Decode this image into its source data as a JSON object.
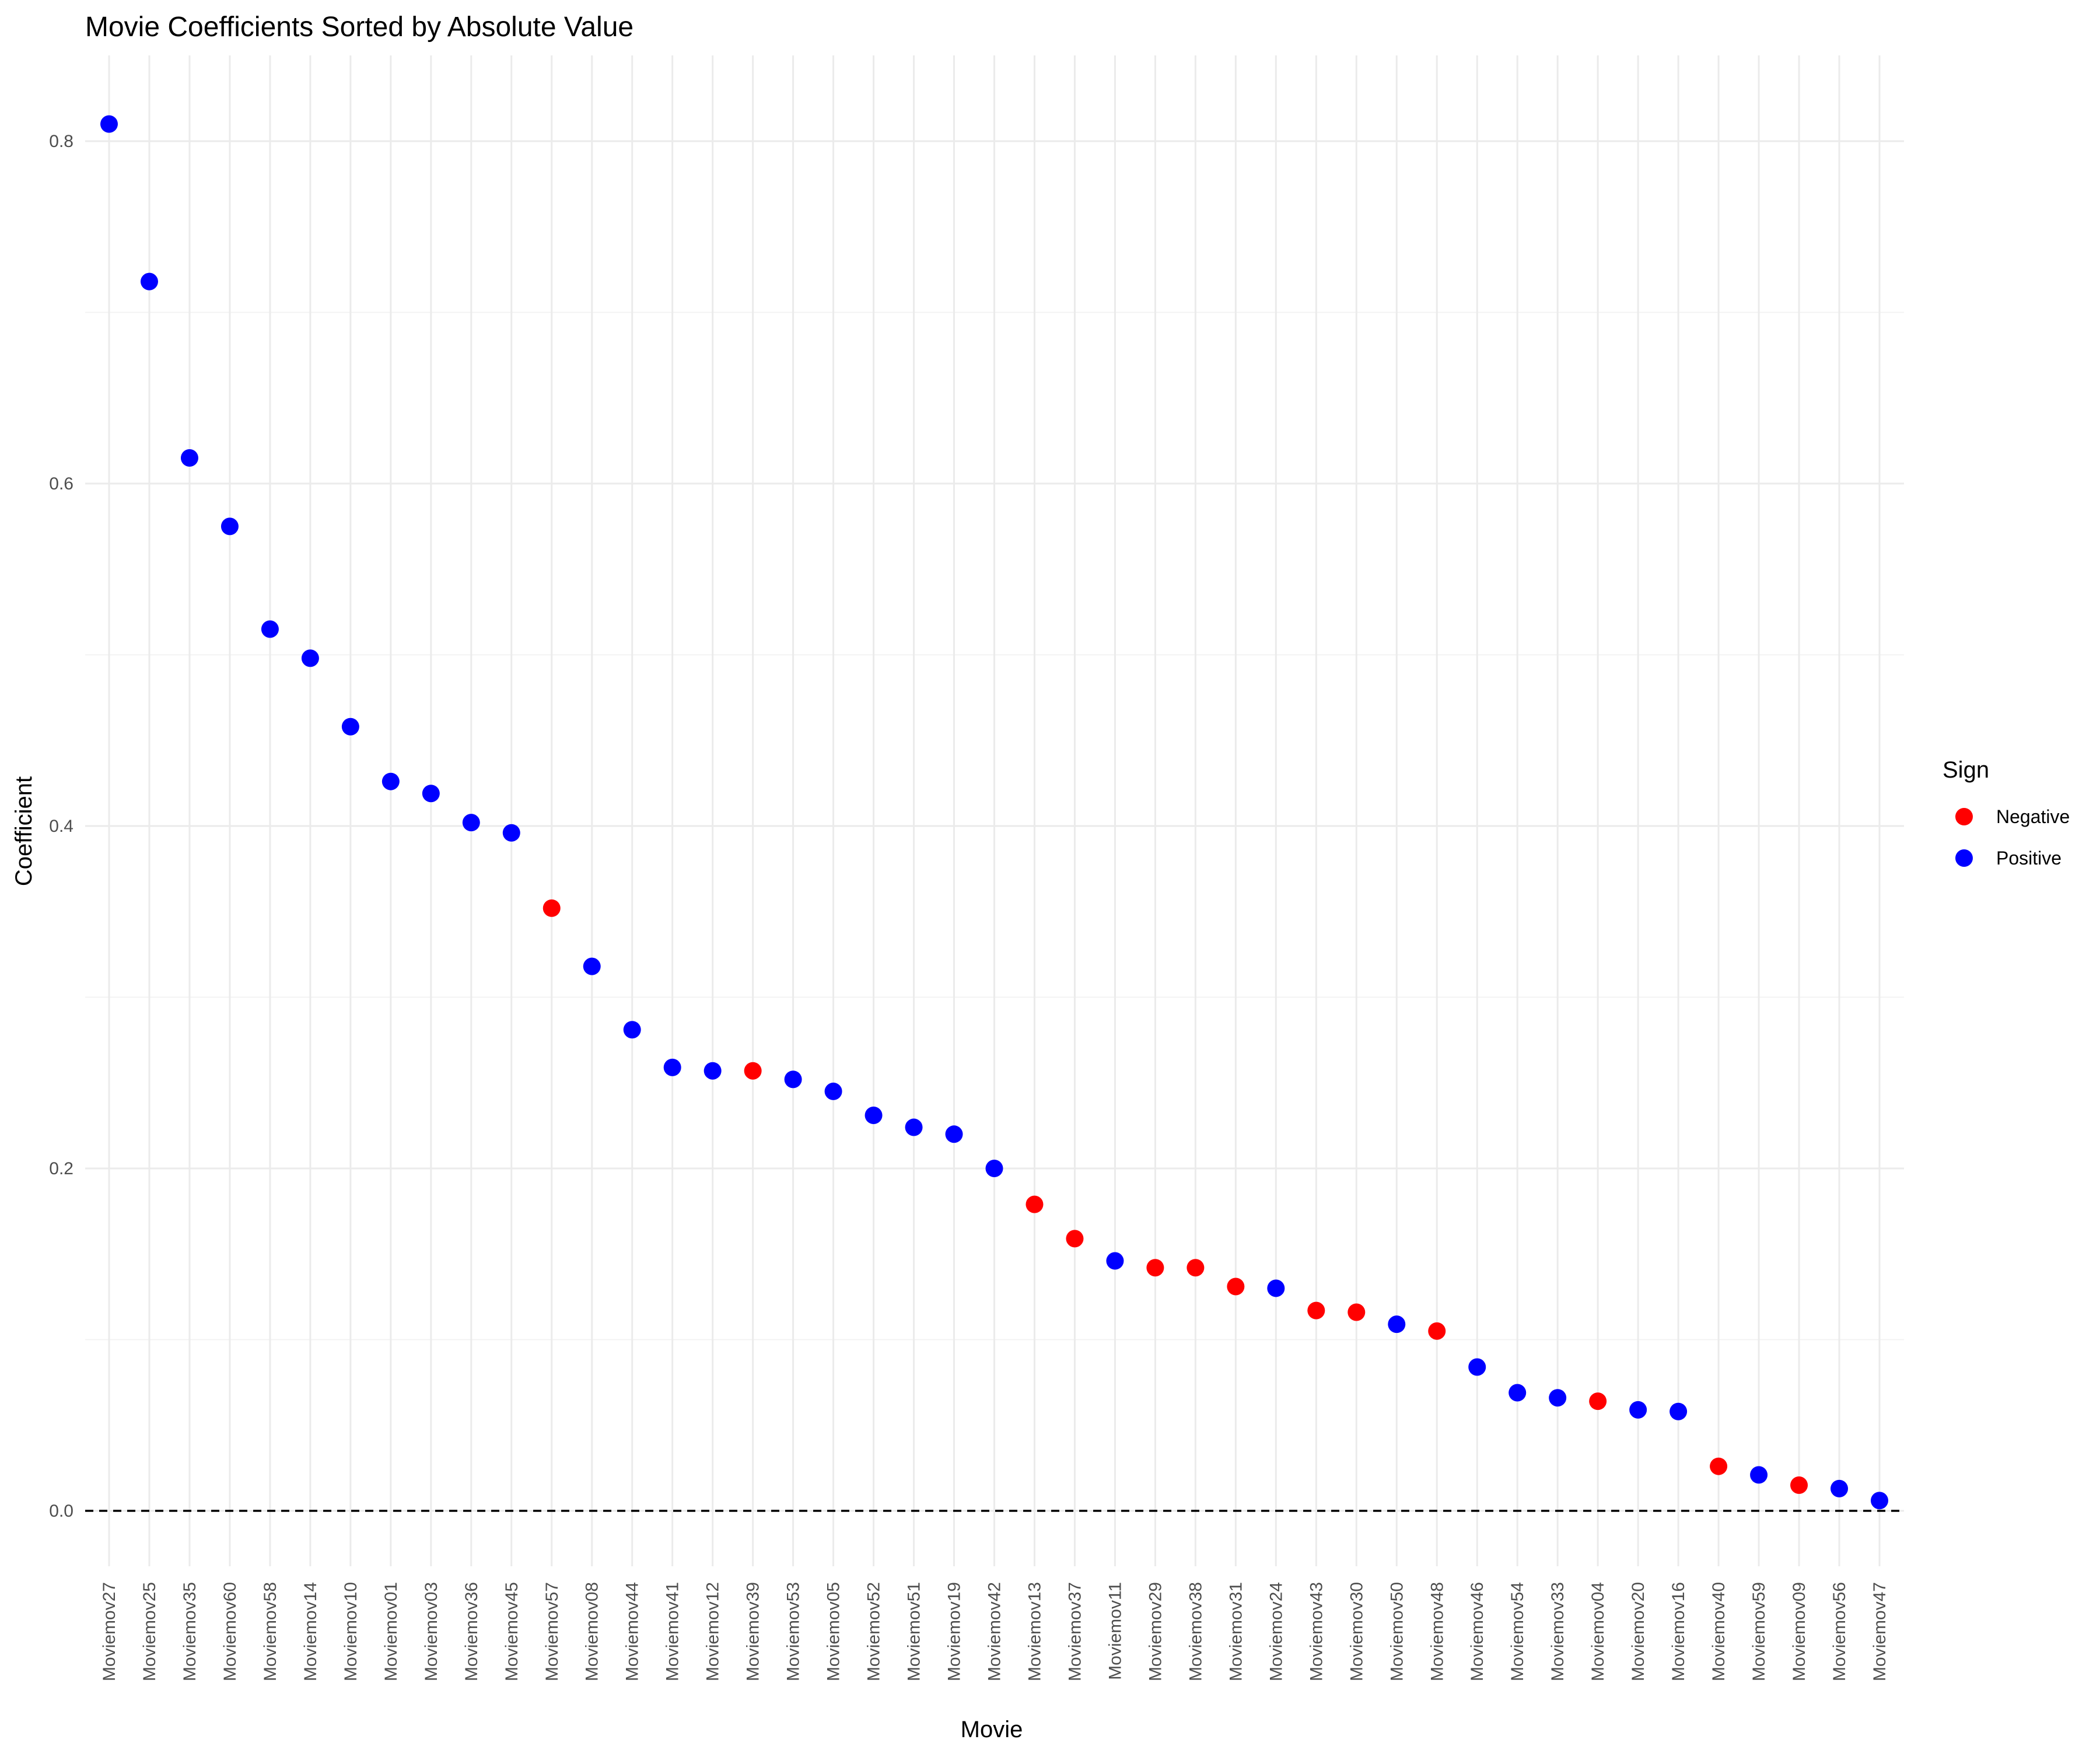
{
  "chart_data": {
    "type": "scatter",
    "title": "Movie Coefficients Sorted by Absolute Value",
    "xlabel": "Movie",
    "ylabel": "Coefficient",
    "ylim": [
      -0.09,
      0.85
    ],
    "yticks": [
      "0.0",
      "0.2",
      "0.4",
      "0.6",
      "0.8"
    ],
    "ytick_values": [
      0.0,
      0.2,
      0.4,
      0.6,
      0.8
    ],
    "grid": true,
    "reference_line": {
      "y": 0.0,
      "style": "dashed"
    },
    "legend": {
      "title": "Sign",
      "placement": "right",
      "entries": [
        {
          "label": "Negative",
          "color": "#ff0000"
        },
        {
          "label": "Positive",
          "color": "#0000ff"
        }
      ]
    },
    "colors": {
      "Negative": "#ff0000",
      "Positive": "#0000ff"
    },
    "points": [
      {
        "x": "Moviemov27",
        "y": 0.81,
        "sign": "Positive"
      },
      {
        "x": "Moviemov25",
        "y": 0.718,
        "sign": "Positive"
      },
      {
        "x": "Moviemov35",
        "y": 0.615,
        "sign": "Positive"
      },
      {
        "x": "Moviemov60",
        "y": 0.575,
        "sign": "Positive"
      },
      {
        "x": "Moviemov58",
        "y": 0.515,
        "sign": "Positive"
      },
      {
        "x": "Moviemov14",
        "y": 0.498,
        "sign": "Positive"
      },
      {
        "x": "Moviemov10",
        "y": 0.458,
        "sign": "Positive"
      },
      {
        "x": "Moviemov01",
        "y": 0.426,
        "sign": "Positive"
      },
      {
        "x": "Moviemov03",
        "y": 0.419,
        "sign": "Positive"
      },
      {
        "x": "Moviemov36",
        "y": 0.402,
        "sign": "Positive"
      },
      {
        "x": "Moviemov45",
        "y": 0.396,
        "sign": "Positive"
      },
      {
        "x": "Moviemov57",
        "y": 0.352,
        "sign": "Negative"
      },
      {
        "x": "Moviemov08",
        "y": 0.318,
        "sign": "Positive"
      },
      {
        "x": "Moviemov44",
        "y": 0.281,
        "sign": "Positive"
      },
      {
        "x": "Moviemov41",
        "y": 0.259,
        "sign": "Positive"
      },
      {
        "x": "Moviemov12",
        "y": 0.257,
        "sign": "Positive"
      },
      {
        "x": "Moviemov39",
        "y": 0.257,
        "sign": "Negative"
      },
      {
        "x": "Moviemov53",
        "y": 0.252,
        "sign": "Positive"
      },
      {
        "x": "Moviemov05",
        "y": 0.245,
        "sign": "Positive"
      },
      {
        "x": "Moviemov52",
        "y": 0.231,
        "sign": "Positive"
      },
      {
        "x": "Moviemov51",
        "y": 0.224,
        "sign": "Positive"
      },
      {
        "x": "Moviemov19",
        "y": 0.22,
        "sign": "Positive"
      },
      {
        "x": "Moviemov42",
        "y": 0.2,
        "sign": "Positive"
      },
      {
        "x": "Moviemov13",
        "y": 0.179,
        "sign": "Negative"
      },
      {
        "x": "Moviemov37",
        "y": 0.159,
        "sign": "Negative"
      },
      {
        "x": "Moviemov11",
        "y": 0.146,
        "sign": "Positive"
      },
      {
        "x": "Moviemov29",
        "y": 0.142,
        "sign": "Negative"
      },
      {
        "x": "Moviemov38",
        "y": 0.142,
        "sign": "Negative"
      },
      {
        "x": "Moviemov31",
        "y": 0.131,
        "sign": "Negative"
      },
      {
        "x": "Moviemov24",
        "y": 0.13,
        "sign": "Positive"
      },
      {
        "x": "Moviemov43",
        "y": 0.117,
        "sign": "Negative"
      },
      {
        "x": "Moviemov30",
        "y": 0.116,
        "sign": "Negative"
      },
      {
        "x": "Moviemov50",
        "y": 0.109,
        "sign": "Positive"
      },
      {
        "x": "Moviemov48",
        "y": 0.105,
        "sign": "Negative"
      },
      {
        "x": "Moviemov46",
        "y": 0.084,
        "sign": "Positive"
      },
      {
        "x": "Moviemov54",
        "y": 0.069,
        "sign": "Positive"
      },
      {
        "x": "Moviemov33",
        "y": 0.066,
        "sign": "Positive"
      },
      {
        "x": "Moviemov04",
        "y": 0.064,
        "sign": "Negative"
      },
      {
        "x": "Moviemov20",
        "y": 0.059,
        "sign": "Positive"
      },
      {
        "x": "Moviemov16",
        "y": 0.058,
        "sign": "Positive"
      },
      {
        "x": "Moviemov40",
        "y": 0.026,
        "sign": "Negative"
      },
      {
        "x": "Moviemov59",
        "y": 0.021,
        "sign": "Positive"
      },
      {
        "x": "Moviemov09",
        "y": 0.015,
        "sign": "Negative"
      },
      {
        "x": "Moviemov56",
        "y": 0.013,
        "sign": "Positive"
      },
      {
        "x": "Moviemov47",
        "y": 0.006,
        "sign": "Positive"
      }
    ]
  }
}
